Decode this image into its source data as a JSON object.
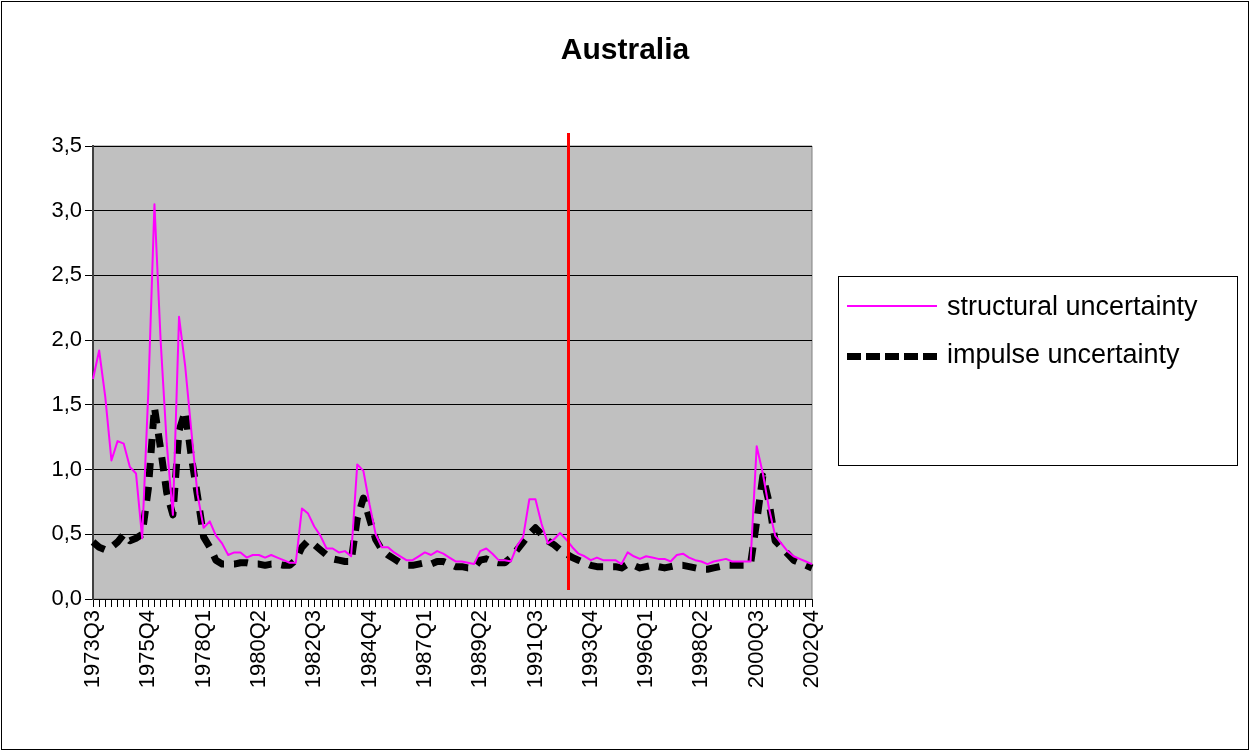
{
  "chart_data": {
    "type": "line",
    "title": "Australia",
    "categories": [
      "1973Q3",
      null,
      null,
      null,
      null,
      null,
      null,
      null,
      null,
      "1975Q4",
      null,
      null,
      null,
      null,
      null,
      null,
      null,
      null,
      "1978Q1",
      null,
      null,
      null,
      null,
      null,
      null,
      null,
      null,
      "1980Q2",
      null,
      null,
      null,
      null,
      null,
      null,
      null,
      null,
      "1982Q3",
      null,
      null,
      null,
      null,
      null,
      null,
      null,
      null,
      "1984Q4",
      null,
      null,
      null,
      null,
      null,
      null,
      null,
      null,
      "1987Q1",
      null,
      null,
      null,
      null,
      null,
      null,
      null,
      null,
      "1989Q2",
      null,
      null,
      null,
      null,
      null,
      null,
      null,
      null,
      "1991Q3",
      null,
      null,
      null,
      null,
      null,
      null,
      null,
      null,
      "1993Q4",
      null,
      null,
      null,
      null,
      null,
      null,
      null,
      null,
      "1996Q1",
      null,
      null,
      null,
      null,
      null,
      null,
      null,
      null,
      "1998Q2",
      null,
      null,
      null,
      null,
      null,
      null,
      null,
      null,
      "2000Q3",
      null,
      null,
      null,
      null,
      null,
      null,
      null,
      null,
      "2002Q4"
    ],
    "series": [
      {
        "name": "structural uncertainty",
        "color": "#ff00ff",
        "line_style": "solid",
        "values": [
          1.7,
          1.92,
          1.56,
          1.07,
          1.22,
          1.2,
          1.02,
          0.97,
          0.47,
          1.6,
          3.05,
          2.0,
          1.2,
          0.65,
          2.18,
          1.8,
          1.3,
          0.81,
          0.55,
          0.6,
          0.49,
          0.43,
          0.34,
          0.36,
          0.36,
          0.32,
          0.34,
          0.34,
          0.32,
          0.34,
          0.32,
          0.3,
          0.28,
          0.28,
          0.7,
          0.66,
          0.56,
          0.49,
          0.39,
          0.39,
          0.36,
          0.37,
          0.33,
          1.04,
          0.99,
          0.73,
          0.5,
          0.4,
          0.4,
          0.36,
          0.33,
          0.3,
          0.3,
          0.33,
          0.36,
          0.34,
          0.37,
          0.35,
          0.32,
          0.29,
          0.29,
          0.28,
          0.27,
          0.37,
          0.39,
          0.35,
          0.3,
          0.3,
          0.29,
          0.41,
          0.48,
          0.77,
          0.77,
          0.58,
          0.43,
          0.46,
          0.51,
          0.46,
          0.4,
          0.35,
          0.33,
          0.3,
          0.32,
          0.3,
          0.3,
          0.3,
          0.27,
          0.36,
          0.33,
          0.31,
          0.33,
          0.32,
          0.31,
          0.31,
          0.29,
          0.34,
          0.35,
          0.32,
          0.3,
          0.29,
          0.27,
          0.29,
          0.3,
          0.31,
          0.29,
          0.29,
          0.29,
          0.29,
          1.18,
          0.97,
          0.7,
          0.49,
          0.43,
          0.37,
          0.33,
          0.31,
          0.29,
          0.27
        ]
      },
      {
        "name": "impulse uncertainty",
        "color": "#000000",
        "line_style": "dashed",
        "values": [
          0.44,
          0.4,
          0.38,
          0.4,
          0.44,
          0.5,
          0.45,
          0.47,
          0.5,
          0.85,
          1.48,
          1.16,
          0.82,
          0.65,
          1.3,
          1.45,
          1.1,
          0.8,
          0.48,
          0.4,
          0.3,
          0.27,
          0.27,
          0.27,
          0.28,
          0.28,
          0.27,
          0.27,
          0.26,
          0.27,
          0.27,
          0.26,
          0.26,
          0.3,
          0.4,
          0.45,
          0.42,
          0.38,
          0.34,
          0.31,
          0.3,
          0.29,
          0.29,
          0.62,
          0.78,
          0.62,
          0.46,
          0.38,
          0.34,
          0.31,
          0.28,
          0.26,
          0.26,
          0.27,
          0.28,
          0.27,
          0.29,
          0.29,
          0.27,
          0.25,
          0.25,
          0.24,
          0.24,
          0.3,
          0.31,
          0.29,
          0.28,
          0.28,
          0.32,
          0.38,
          0.44,
          0.5,
          0.55,
          0.5,
          0.45,
          0.42,
          0.38,
          0.35,
          0.32,
          0.3,
          0.28,
          0.26,
          0.25,
          0.25,
          0.25,
          0.25,
          0.24,
          0.27,
          0.26,
          0.24,
          0.25,
          0.26,
          0.25,
          0.24,
          0.25,
          0.26,
          0.26,
          0.25,
          0.24,
          0.23,
          0.23,
          0.24,
          0.25,
          0.26,
          0.26,
          0.26,
          0.26,
          0.27,
          0.6,
          0.95,
          0.75,
          0.45,
          0.4,
          0.35,
          0.3,
          0.28,
          0.26,
          0.24
        ]
      }
    ],
    "ylim": [
      0,
      3.5
    ],
    "yticks": [
      {
        "value": 0,
        "label": "0,0"
      },
      {
        "value": 0.5,
        "label": "0,5"
      },
      {
        "value": 1,
        "label": "1,0"
      },
      {
        "value": 1.5,
        "label": "1,5"
      },
      {
        "value": 2,
        "label": "2,0"
      },
      {
        "value": 2.5,
        "label": "2,5"
      },
      {
        "value": 3,
        "label": "3,0"
      },
      {
        "value": 3.5,
        "label": "3,5"
      }
    ],
    "grid": "y",
    "legend": "right",
    "marker": "none"
  }
}
